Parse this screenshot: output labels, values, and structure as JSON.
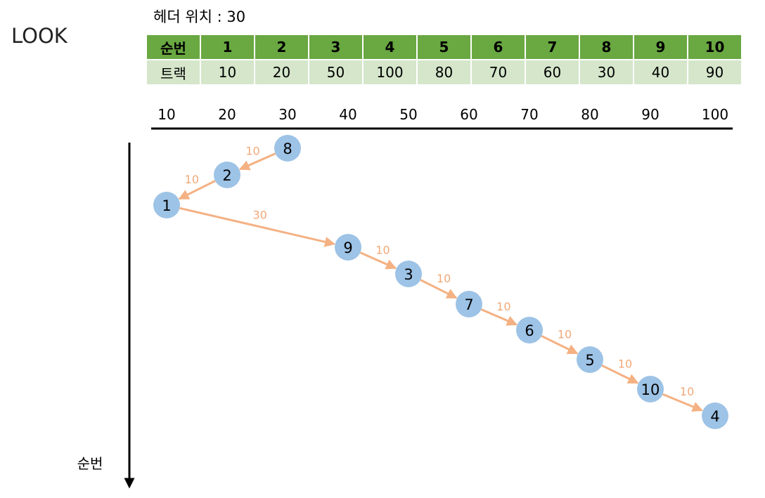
{
  "title": "LOOK",
  "head_position_text": "헤더 위치 : 30",
  "table": {
    "order_header": "순번",
    "track_header": "트랙",
    "orders": [
      "1",
      "2",
      "3",
      "4",
      "5",
      "6",
      "7",
      "8",
      "9",
      "10"
    ],
    "tracks": [
      "10",
      "20",
      "50",
      "100",
      "80",
      "70",
      "60",
      "30",
      "40",
      "90"
    ]
  },
  "axis": {
    "ticks": [
      "10",
      "20",
      "30",
      "40",
      "50",
      "60",
      "70",
      "80",
      "90",
      "100"
    ],
    "y_label": "순번"
  },
  "diagram": {
    "sequence": [
      {
        "label": "8",
        "track": 30,
        "step": 0
      },
      {
        "label": "2",
        "track": 20,
        "step": 1
      },
      {
        "label": "1",
        "track": 10,
        "step": 2
      },
      {
        "label": "9",
        "track": 40,
        "step": 3
      },
      {
        "label": "3",
        "track": 50,
        "step": 4
      },
      {
        "label": "7",
        "track": 60,
        "step": 5
      },
      {
        "label": "6",
        "track": 70,
        "step": 6
      },
      {
        "label": "5",
        "track": 80,
        "step": 7
      },
      {
        "label": "10",
        "track": 90,
        "step": 8
      },
      {
        "label": "4",
        "track": 100,
        "step": 9
      }
    ],
    "distances": [
      "10",
      "10",
      "30",
      "10",
      "10",
      "10",
      "10",
      "10",
      "10"
    ],
    "colors": {
      "node": "#9dc3e6",
      "arrow": "#f4b183",
      "distance_text": "#f0a878"
    }
  }
}
